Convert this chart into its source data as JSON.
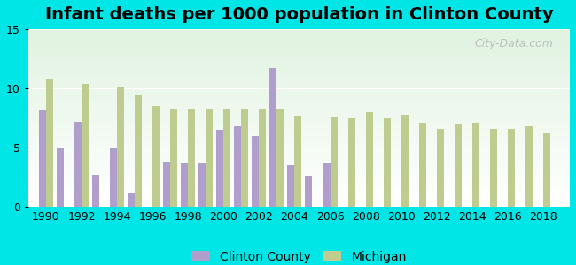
{
  "title": "Infant deaths per 1000 population in Clinton County",
  "background_color": "#00e5e5",
  "plot_bg_top": "#e8f5f0",
  "plot_bg_bottom": "#ffffff",
  "ylim": [
    0,
    15
  ],
  "yticks": [
    0,
    5,
    10,
    15
  ],
  "years": [
    1990,
    1991,
    1992,
    1993,
    1994,
    1995,
    1996,
    1997,
    1998,
    1999,
    2000,
    2001,
    2002,
    2003,
    2004,
    2005,
    2006,
    2007,
    2008,
    2009,
    2010,
    2011,
    2012,
    2013,
    2014,
    2015,
    2016,
    2017,
    2018
  ],
  "clinton_county": [
    8.2,
    5.0,
    7.2,
    2.7,
    5.0,
    1.2,
    null,
    3.8,
    3.7,
    3.7,
    6.5,
    6.8,
    6.0,
    11.7,
    3.5,
    2.6,
    3.7,
    null,
    null,
    null,
    null,
    null,
    null,
    null,
    null,
    null,
    null,
    null,
    null
  ],
  "michigan": [
    10.8,
    null,
    10.4,
    null,
    10.1,
    9.4,
    8.5,
    8.3,
    8.3,
    8.3,
    8.3,
    8.3,
    8.3,
    8.3,
    7.7,
    null,
    7.6,
    7.5,
    8.0,
    7.5,
    7.8,
    7.1,
    6.6,
    7.0,
    7.1,
    6.6,
    6.6,
    6.8,
    6.2
  ],
  "clinton_color": "#b09fcc",
  "michigan_color": "#bfcc8f",
  "bar_width": 0.4,
  "title_fontsize": 14,
  "tick_fontsize": 9,
  "legend_fontsize": 10
}
